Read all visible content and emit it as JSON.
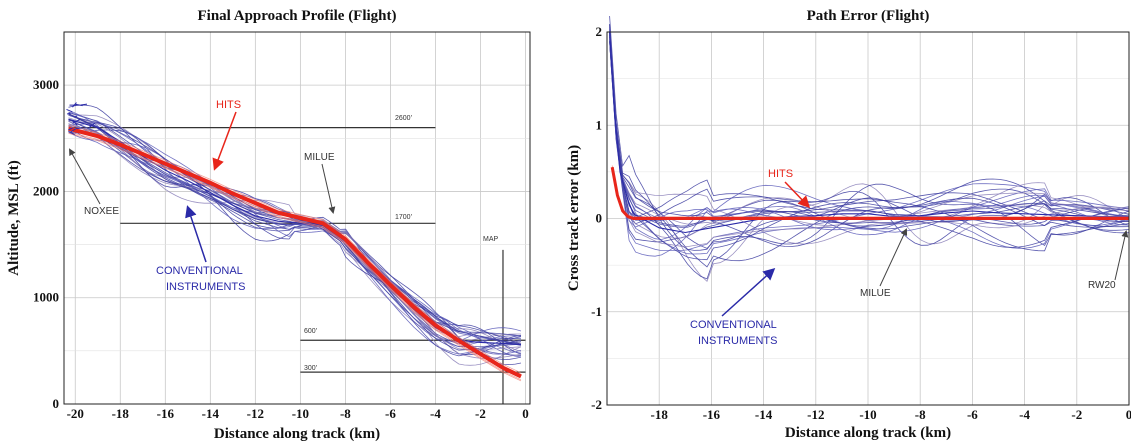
{
  "chart_data": [
    {
      "type": "line",
      "title": "Final Approach Profile (Flight)",
      "xlabel": "Distance along track (km)",
      "ylabel": "Altitude, MSL (ft)",
      "xlim": [
        -20.5,
        0.2
      ],
      "ylim": [
        0,
        3500
      ],
      "xticks": [
        -20,
        -18,
        -16,
        -14,
        -12,
        -10,
        -8,
        -6,
        -4,
        -2,
        0
      ],
      "yticks": [
        0,
        1000,
        2000,
        3000
      ],
      "grid": true,
      "series": [
        {
          "name": "HITS",
          "color": "#e8261b",
          "x": [
            -20.3,
            -19,
            -18,
            -17,
            -16,
            -15,
            -14,
            -13,
            -12,
            -11,
            -10,
            -9,
            -8,
            -7,
            -6,
            -5,
            -4,
            -3,
            -2,
            -1,
            -0.2
          ],
          "y": [
            2590,
            2520,
            2440,
            2350,
            2260,
            2170,
            2080,
            1980,
            1890,
            1800,
            1750,
            1700,
            1550,
            1330,
            1120,
            920,
            740,
            600,
            470,
            340,
            260
          ]
        },
        {
          "name": "CONVENTIONAL INSTRUMENTS",
          "color": "#2a2aa8",
          "x": [
            -20.3,
            -19,
            -18,
            -17,
            -16,
            -15,
            -14,
            -13,
            -12,
            -11,
            -10,
            -9,
            -8,
            -7,
            -6,
            -5,
            -4,
            -3,
            -2,
            -1,
            -0.2
          ],
          "y": [
            2680,
            2600,
            2470,
            2330,
            2200,
            2100,
            1990,
            1870,
            1770,
            1720,
            1700,
            1690,
            1540,
            1310,
            1100,
            900,
            720,
            600,
            580,
            570,
            560
          ]
        }
      ],
      "reference_lines": [
        {
          "label": "2600'",
          "y": 2600,
          "x": [
            -20.3,
            -4
          ]
        },
        {
          "label": "1700'",
          "y": 1700,
          "x": [
            -18,
            -4
          ]
        },
        {
          "label": "600'",
          "y": 600,
          "x": [
            -10,
            0
          ]
        },
        {
          "label": "300'",
          "y": 300,
          "x": [
            -10,
            0
          ]
        }
      ],
      "map_line": {
        "label": "MAP",
        "x": -1,
        "y": [
          0,
          1450
        ]
      },
      "annotations": [
        "HITS",
        "MILUE",
        "NOXEE",
        "CONVENTIONAL",
        "INSTRUMENTS"
      ]
    },
    {
      "type": "line",
      "title": "Path Error (Flight)",
      "xlabel": "Distance along track (km)",
      "ylabel": "Cross track error (km)",
      "xlim": [
        -20,
        0
      ],
      "ylim": [
        -2,
        2
      ],
      "xticks": [
        -18,
        -16,
        -14,
        -12,
        -10,
        -8,
        -6,
        -4,
        -2,
        0
      ],
      "yticks": [
        -2,
        -1,
        0,
        1,
        2
      ],
      "grid": true,
      "series": [
        {
          "name": "HITS",
          "color": "#e8261b",
          "x": [
            -19.8,
            -19.6,
            -19.4,
            -19.2,
            -19,
            -18,
            -16,
            -14,
            -12,
            -10,
            -8,
            -6,
            -4,
            -2,
            0
          ],
          "y": [
            0.55,
            0.25,
            0.08,
            0.02,
            0.0,
            0.0,
            0.0,
            0.0,
            0.0,
            0.0,
            0.0,
            0.0,
            0.0,
            0.0,
            0.0
          ]
        },
        {
          "name": "CONVENTIONAL INSTRUMENTS",
          "color": "#2a2aa8",
          "x": [
            -19.9,
            -19.7,
            -19.5,
            -19.2,
            -19,
            -18,
            -17,
            -16,
            -15,
            -14,
            -13,
            -12,
            -11,
            -10,
            -9,
            -8,
            -7,
            -6,
            -5,
            -4,
            -3,
            -2,
            -1,
            0
          ],
          "y": [
            2.0,
            1.1,
            0.5,
            0.2,
            0.05,
            -0.1,
            -0.15,
            -0.1,
            -0.05,
            0.0,
            0.02,
            0.03,
            0.05,
            0.05,
            0.02,
            0.03,
            0.06,
            0.08,
            0.06,
            0.05,
            0.04,
            0.03,
            0.02,
            0.02
          ]
        }
      ],
      "annotations": [
        "HITS",
        "MILUE",
        "RW20",
        "CONVENTIONAL",
        "INSTRUMENTS"
      ]
    }
  ],
  "left": {
    "title": "Final Approach Profile (Flight)",
    "xlabel": "Distance along track (km)",
    "ylabel": "Altitude, MSL (ft)",
    "hits": "HITS",
    "milue": "MILUE",
    "noxee": "NOXEE",
    "conv1": "CONVENTIONAL",
    "conv2": "INSTRUMENTS",
    "map": "MAP",
    "r2600": "2600'",
    "r1700": "1700'",
    "r600": "600'",
    "r300": "300'"
  },
  "right": {
    "title": "Path Error (Flight)",
    "xlabel": "Distance along track (km)",
    "ylabel": "Cross track error (km)",
    "hits": "HITS",
    "milue": "MILUE",
    "rw20": "RW20",
    "conv1": "CONVENTIONAL",
    "conv2": "INSTRUMENTS"
  },
  "colors": {
    "hits": "#e8261b",
    "conventional": "#2a2aa8",
    "grid": "#c8c8c8",
    "ref": "#333333"
  }
}
